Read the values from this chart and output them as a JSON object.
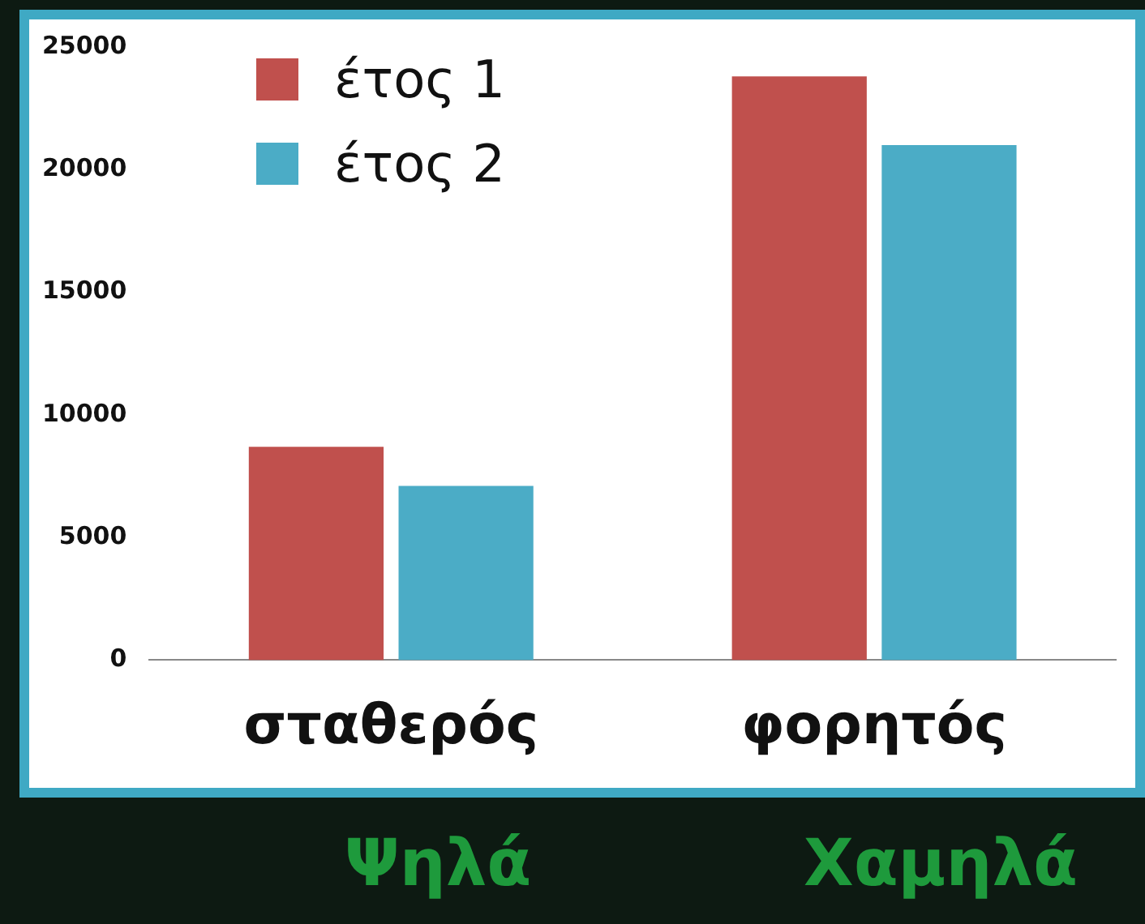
{
  "chart_data": {
    "type": "bar",
    "categories": [
      "σταθερός",
      "φορητός"
    ],
    "series": [
      {
        "name": "έτος 1",
        "color": "#c0504d",
        "values": [
          8700,
          23800
        ]
      },
      {
        "name": "έτος 2",
        "color": "#4bacc6",
        "values": [
          7100,
          21000
        ]
      }
    ],
    "ylim": [
      0,
      25000
    ],
    "yticks": [
      0,
      5000,
      10000,
      15000,
      20000,
      25000
    ],
    "grid": false,
    "legend": "top left",
    "annotations": [
      "Ψηλά",
      "Χαμηλά"
    ]
  }
}
